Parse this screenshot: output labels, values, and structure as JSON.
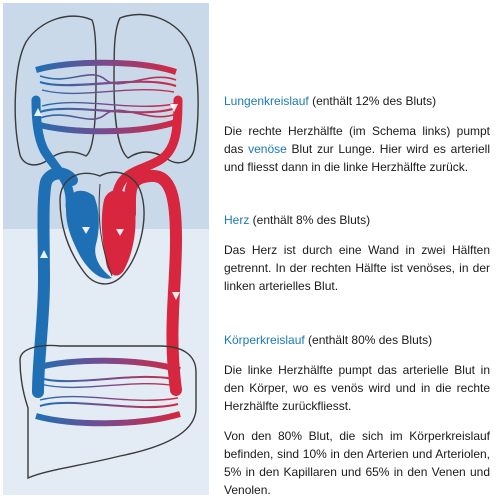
{
  "colors": {
    "venous": "#1f6fb4",
    "arterial": "#d7263d",
    "accent": "#1a79b7",
    "bg_upper": "#c9d9ea",
    "bg_lower": "#e3ebf4"
  },
  "lungen": {
    "title": "Lungenkreislauf",
    "note": " (enthält 12% des Bluts)",
    "text_a": "Die rechte Herzhälfte (im Schema links) pumpt das ",
    "text_hl": "venöse",
    "text_b": " Blut zur Lunge. Hier wird es arteriell und fliesst dann in die linke Herzhälfte zurück."
  },
  "herz": {
    "title": "Herz",
    "note": " (enthält 8% des Bluts)",
    "text": "Das Herz ist durch eine Wand in zwei Hälften getrennt. In der rechten Hälfte ist venöses, in der linken arterielles Blut."
  },
  "koerper": {
    "title": "Körperkreislauf",
    "note": " (enthält 80% des Bluts)",
    "text1": "Die linke Herzhälfte pumpt das arterielle Blut in den Körper, wo es venös wird und in die rechte Herzhälfte zurückfliesst.",
    "text2": "Von den 80% Blut, die sich im Körperkreislauf befinden, sind 10% in den Arterien und Arteriolen, 5% in den Kapillaren und 65% in den Venen und Venolen."
  }
}
